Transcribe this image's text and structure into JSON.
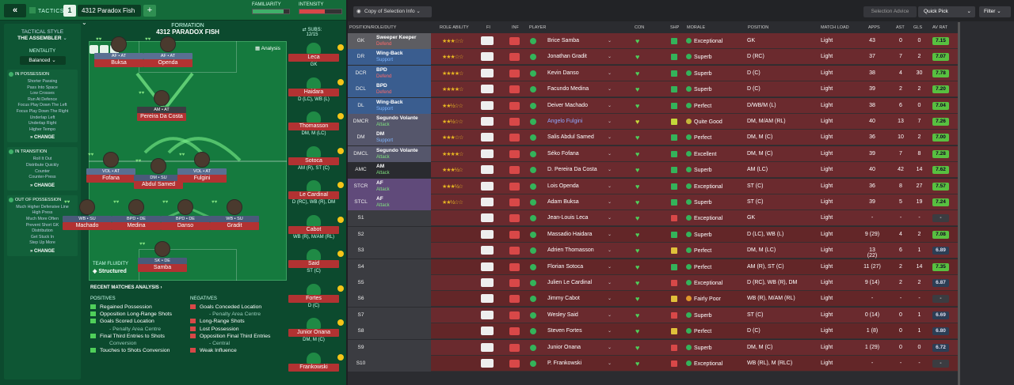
{
  "topbar": {
    "back": "«",
    "tactics": "TACTICS",
    "slot": "1",
    "tactic_name": "4312 Paradox Fish",
    "add": "+",
    "familiarity": "FAMILIARITY",
    "intensity": "INTENSITY",
    "familiarity_level": 0.85,
    "intensity_level": 0.6
  },
  "sidebar": {
    "style_label": "TACTICAL STYLE",
    "style": "THE ASSEMBLER",
    "mentality_label": "MENTALITY",
    "mentality": "Balanced",
    "in_possession": {
      "title": "IN POSSESSION",
      "items": [
        "Shorter Passing",
        "Pass Into Space",
        "Low Crosses",
        "Run At Defence",
        "Focus Play Down The Left",
        "Focus Play Down The Right",
        "Underlap Left",
        "Underlap Right",
        "Higher Tempo"
      ],
      "change": "CHANGE"
    },
    "in_transition": {
      "title": "IN TRANSITION",
      "items": [
        "Roll It Out",
        "Distribute Quickly",
        "Counter",
        "Counter-Press"
      ],
      "change": "CHANGE"
    },
    "out_of_possession": {
      "title": "OUT OF POSSESSION",
      "items": [
        "Much Higher Defensive Line",
        "High Press",
        "Much More Often",
        "Prevent Short GK",
        "Distribution",
        "Get Stuck In",
        "Step Up More"
      ],
      "change": "CHANGE"
    }
  },
  "pitch": {
    "formation_label": "FORMATION",
    "formation": "4312 PARADOX FISH",
    "analysis": "Analysis",
    "fluidity_label": "TEAM FLUIDITY",
    "fluidity": "Structured",
    "players": [
      {
        "role": "AF • AT",
        "name": "Buksa"
      },
      {
        "role": "AF • AT",
        "name": "Openda"
      },
      {
        "role": "AM • AT",
        "name": "Pereira Da Costa"
      },
      {
        "role": "VOL • AT",
        "name": "Fofana"
      },
      {
        "role": "DM • SU",
        "name": "Abdul Samed"
      },
      {
        "role": "VOL • AT",
        "name": "Fulgini"
      },
      {
        "role": "WB • SU",
        "name": "Machado"
      },
      {
        "role": "BPD • DE",
        "name": "Medina"
      },
      {
        "role": "BPD • DE",
        "name": "Danso"
      },
      {
        "role": "WB • SU",
        "name": "Gradit"
      },
      {
        "role": "SK • DE",
        "name": "Samba"
      }
    ]
  },
  "subs": {
    "label": "SUBS:",
    "count": "12/15",
    "items": [
      {
        "name": "Leca",
        "pos": "GK"
      },
      {
        "name": "Haidara",
        "pos": "D (LC), WB (L)"
      },
      {
        "name": "Thomasson",
        "pos": "DM, M (LC)"
      },
      {
        "name": "Sotoca",
        "pos": "AM (R), ST (C)"
      },
      {
        "name": "Le Cardinal",
        "pos": "D (RC), WB (R), DM"
      },
      {
        "name": "Cabot",
        "pos": "WB (R), M/AM (RL)"
      },
      {
        "name": "Said",
        "pos": "ST (C)"
      },
      {
        "name": "Fortes",
        "pos": "D (C)"
      },
      {
        "name": "Junior Onana",
        "pos": "DM, M (C)"
      },
      {
        "name": "Frankowski",
        "pos": ""
      }
    ]
  },
  "matches": {
    "title": "RECENT MATCHES ANALYSIS ›",
    "pos_label": "POSITIVES",
    "neg_label": "NEGATIVES",
    "positives": [
      {
        "t": "Regained Possession"
      },
      {
        "t": "Opposition Long-Range Shots"
      },
      {
        "t": "Goals Scored Location"
      },
      {
        "t": "- Penalty Area Centre",
        "s": true
      },
      {
        "t": "Final Third Entries to Shots"
      },
      {
        "t": "Conversion",
        "s": true
      },
      {
        "t": "Touches to Shots Conversion"
      }
    ],
    "negatives": [
      {
        "t": "Goals Conceded Location"
      },
      {
        "t": "- Penalty Area Centre",
        "s": true
      },
      {
        "t": "Long-Range Shots"
      },
      {
        "t": "Lost Possession"
      },
      {
        "t": "Opposition Final Third Entries"
      },
      {
        "t": "- Central",
        "s": true
      },
      {
        "t": "Weak Influence"
      }
    ]
  },
  "rtop": {
    "copy": "Copy of Selection Info",
    "advice": "Selection Advice",
    "quick": "Quick Pick",
    "filter": "Filter"
  },
  "headers": {
    "pos": "POSITION/ROLE/DUTY",
    "ra": "ROLE ABILITY",
    "fi": "FI",
    "inf": "INF",
    "player": "PLAYER",
    "con": "CON",
    "shp": "SHP",
    "morale": "MORALE",
    "position": "POSITION",
    "ml": "MATCH LOAD",
    "apps": "APPS",
    "ast": "AST",
    "gls": "GLS",
    "avr": "AV RAT"
  },
  "rows": [
    {
      "p": "GK",
      "role": "Sweeper Keeper",
      "duty": "Defend",
      "stars": "★★★☆☆",
      "name": "Brice Samba",
      "morale": "Exceptional",
      "pos": "GK",
      "ml": "Light",
      "apps": "43",
      "ast": "0",
      "gls": "0",
      "avr": "7.15"
    },
    {
      "p": "DR",
      "role": "Wing-Back",
      "duty": "Support",
      "stars": "★★★☆☆",
      "name": "Jonathan Gradit",
      "morale": "Superb",
      "pos": "D (RC)",
      "ml": "Light",
      "apps": "37",
      "ast": "7",
      "gls": "2",
      "avr": "7.07"
    },
    {
      "p": "DCR",
      "role": "BPD",
      "duty": "Defend",
      "stars": "★★★★☆",
      "name": "Kevin Danso",
      "morale": "Superb",
      "pos": "D (C)",
      "ml": "Light",
      "apps": "38",
      "ast": "4",
      "gls": "30",
      "avr": "7.78"
    },
    {
      "p": "DCL",
      "role": "BPD",
      "duty": "Defend",
      "stars": "★★★★☆",
      "name": "Facundo Medina",
      "morale": "Superb",
      "pos": "D (C)",
      "ml": "Light",
      "apps": "39",
      "ast": "2",
      "gls": "2",
      "avr": "7.20"
    },
    {
      "p": "DL",
      "role": "Wing-Back",
      "duty": "Support",
      "stars": "★★½☆☆",
      "name": "Deiver Machado",
      "morale": "Perfect",
      "pos": "D/WB/M (L)",
      "ml": "Light",
      "apps": "38",
      "ast": "6",
      "gls": "0",
      "avr": "7.04"
    },
    {
      "p": "DMCR",
      "role": "Segundo Volante",
      "duty": "Attack",
      "stars": "★★½☆☆",
      "name": "Angelo Fulgini",
      "morale": "Quite Good",
      "pos": "DM, M/AM (RL)",
      "ml": "Light",
      "apps": "40",
      "ast": "13",
      "gls": "7",
      "avr": "7.26"
    },
    {
      "p": "DM",
      "role": "DM",
      "duty": "Support",
      "stars": "★★★☆☆",
      "name": "Salis Abdul Samed",
      "morale": "Perfect",
      "pos": "DM, M (C)",
      "ml": "Light",
      "apps": "36",
      "ast": "10",
      "gls": "2",
      "avr": "7.00"
    },
    {
      "p": "DMCL",
      "role": "Segundo Volante",
      "duty": "Attack",
      "stars": "★★★★☆",
      "name": "Séko Fofana",
      "morale": "Excellent",
      "pos": "DM, M (C)",
      "ml": "Light",
      "apps": "39",
      "ast": "7",
      "gls": "8",
      "avr": "7.28"
    },
    {
      "p": "AMC",
      "role": "AM",
      "duty": "Attack",
      "stars": "★★★½☆",
      "name": "D. Pereira Da Costa",
      "morale": "Superb",
      "pos": "AM (LC)",
      "ml": "Light",
      "apps": "40",
      "ast": "42",
      "gls": "14",
      "avr": "7.62"
    },
    {
      "p": "STCR",
      "role": "AF",
      "duty": "Attack",
      "stars": "★★★½☆",
      "name": "Lois Openda",
      "morale": "Exceptional",
      "pos": "ST (C)",
      "ml": "Light",
      "apps": "36",
      "ast": "8",
      "gls": "27",
      "avr": "7.57"
    },
    {
      "p": "STCL",
      "role": "AF",
      "duty": "Attack",
      "stars": "★★½☆☆",
      "name": "Adam Buksa",
      "morale": "Superb",
      "pos": "ST (C)",
      "ml": "Light",
      "apps": "39",
      "ast": "5",
      "gls": "19",
      "avr": "7.24"
    },
    {
      "p": "S1",
      "role": "",
      "duty": "",
      "stars": "",
      "name": "Jean-Louis Leca",
      "morale": "Exceptional",
      "pos": "GK",
      "ml": "Light",
      "apps": "-",
      "ast": "-",
      "gls": "-",
      "avr": "-"
    },
    {
      "p": "S2",
      "role": "",
      "duty": "",
      "stars": "",
      "name": "Massadio Haidara",
      "morale": "Superb",
      "pos": "D (LC), WB (L)",
      "ml": "Light",
      "apps": "9 (29)",
      "ast": "4",
      "gls": "2",
      "avr": "7.08"
    },
    {
      "p": "S3",
      "role": "",
      "duty": "",
      "stars": "",
      "name": "Adrien Thomasson",
      "morale": "Perfect",
      "pos": "DM, M (LC)",
      "ml": "Light",
      "apps": "13 (22)",
      "ast": "6",
      "gls": "1",
      "avr": "6.89"
    },
    {
      "p": "S4",
      "role": "",
      "duty": "",
      "stars": "",
      "name": "Florian Sotoca",
      "morale": "Perfect",
      "pos": "AM (R), ST (C)",
      "ml": "Light",
      "apps": "11 (27)",
      "ast": "2",
      "gls": "14",
      "avr": "7.35"
    },
    {
      "p": "S5",
      "role": "",
      "duty": "",
      "stars": "",
      "name": "Julien Le Cardinal",
      "morale": "Exceptional",
      "pos": "D (RC), WB (R), DM",
      "ml": "Light",
      "apps": "9 (14)",
      "ast": "2",
      "gls": "2",
      "avr": "6.87"
    },
    {
      "p": "S6",
      "role": "",
      "duty": "",
      "stars": "",
      "name": "Jimmy Cabot",
      "morale": "Fairly Poor",
      "pos": "WB (R), M/AM (RL)",
      "ml": "Light",
      "apps": "-",
      "ast": "-",
      "gls": "-",
      "avr": "-"
    },
    {
      "p": "S7",
      "role": "",
      "duty": "",
      "stars": "",
      "name": "Wesley Said",
      "morale": "Superb",
      "pos": "ST (C)",
      "ml": "Light",
      "apps": "0 (14)",
      "ast": "0",
      "gls": "1",
      "avr": "6.69"
    },
    {
      "p": "S8",
      "role": "",
      "duty": "",
      "stars": "",
      "name": "Steven Fortes",
      "morale": "Perfect",
      "pos": "D (C)",
      "ml": "Light",
      "apps": "1 (8)",
      "ast": "0",
      "gls": "1",
      "avr": "6.80"
    },
    {
      "p": "S9",
      "role": "",
      "duty": "",
      "stars": "",
      "name": "Junior Onana",
      "morale": "Superb",
      "pos": "DM, M (C)",
      "ml": "Light",
      "apps": "1 (29)",
      "ast": "0",
      "gls": "0",
      "avr": "6.72"
    },
    {
      "p": "S10",
      "role": "",
      "duty": "",
      "stars": "",
      "name": "P. Frankowski",
      "morale": "Exceptional",
      "pos": "WB (RL), M (RLC)",
      "ml": "Light",
      "apps": "-",
      "ast": "-",
      "gls": "-",
      "avr": "-"
    }
  ]
}
